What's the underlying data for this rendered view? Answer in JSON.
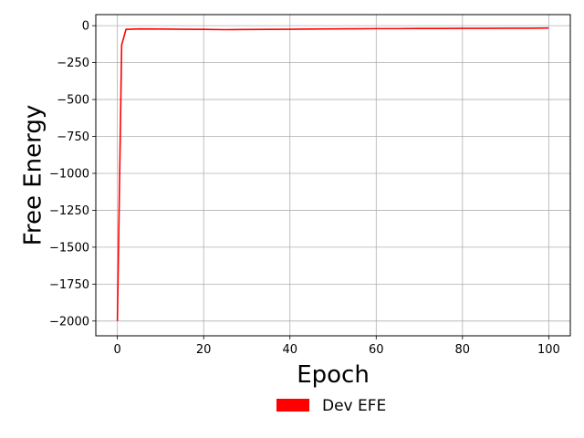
{
  "chart_data": {
    "type": "line",
    "title": "",
    "xlabel": "Epoch",
    "ylabel": "Free Energy",
    "xlim": [
      -5,
      105
    ],
    "ylim": [
      -2100,
      75
    ],
    "xticks": [
      0,
      20,
      40,
      60,
      80,
      100
    ],
    "yticks": [
      0,
      -250,
      -500,
      -750,
      -1000,
      -1250,
      -1500,
      -1750,
      -2000
    ],
    "xtick_labels": [
      "0",
      "20",
      "40",
      "60",
      "80",
      "100"
    ],
    "ytick_labels": [
      "0",
      "−250",
      "−500",
      "−750",
      "−1000",
      "−1250",
      "−1500",
      "−1750",
      "−2000"
    ],
    "grid": true,
    "legend_placement": "below",
    "series": [
      {
        "name": "Dev EFE",
        "color": "#ff0000",
        "x": [
          0,
          1,
          2,
          5,
          10,
          15,
          20,
          25,
          30,
          35,
          40,
          45,
          50,
          55,
          60,
          65,
          70,
          75,
          80,
          85,
          90,
          95,
          100
        ],
        "y": [
          -2000,
          -130,
          -25,
          -22,
          -23,
          -24,
          -25,
          -27,
          -26,
          -25,
          -24,
          -23,
          -22,
          -21,
          -20,
          -20,
          -19,
          -19,
          -18,
          -18,
          -17,
          -17,
          -16
        ]
      }
    ]
  }
}
